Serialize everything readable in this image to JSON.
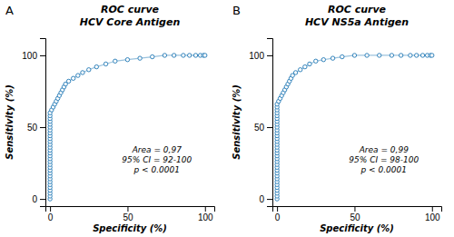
{
  "chart_data": [
    {
      "type": "line",
      "title": "ROC curve",
      "subtitle": "HCV Core Antigen",
      "xlabel": "Specificity (%)",
      "ylabel": "Sensitivity (%)",
      "annotations": [
        "A",
        "Area = 0,97\n95% CI = 92-100\np < 0.0001"
      ],
      "marker": "circle",
      "line_style": "solid",
      "x": [
        0,
        0,
        0,
        0,
        0,
        0,
        0,
        0,
        0,
        0,
        0,
        0,
        0,
        0,
        0,
        0,
        0,
        0,
        0,
        0,
        0,
        0,
        0,
        0,
        0,
        0,
        0,
        0,
        0,
        0,
        0,
        1,
        2,
        3,
        4,
        5,
        6,
        7,
        8,
        9,
        10,
        12,
        15,
        18,
        21,
        25,
        30,
        36,
        42,
        50,
        58,
        66,
        74,
        80,
        86,
        90,
        94,
        97,
        99,
        100
      ],
      "values": [
        0,
        2,
        4,
        6,
        8,
        10,
        12,
        14,
        16,
        18,
        20,
        22,
        24,
        26,
        28,
        30,
        32,
        34,
        36,
        38,
        40,
        42,
        44,
        46,
        48,
        50,
        52,
        54,
        56,
        58,
        60,
        62,
        64,
        66,
        68,
        70,
        72,
        74,
        76,
        78,
        80,
        82,
        84,
        86,
        88,
        90,
        92,
        94,
        96,
        97,
        98,
        99,
        100,
        100,
        100,
        100,
        100,
        100,
        100,
        100
      ],
      "xlim": [
        -3,
        106
      ],
      "ylim": [
        -5,
        112
      ],
      "xticks": [
        0,
        50,
        100
      ],
      "yticks": [
        0,
        50,
        100
      ],
      "grid": false
    },
    {
      "type": "line",
      "title": "ROC curve",
      "subtitle": "HCV NS5a Antigen",
      "xlabel": "Specificity (%)",
      "ylabel": "Sensitivity (%)",
      "annotations": [
        "B",
        "Area = 0,99\n95% CI = 98-100\np < 0.0001"
      ],
      "marker": "circle",
      "line_style": "solid",
      "x": [
        0,
        0,
        0,
        0,
        0,
        0,
        0,
        0,
        0,
        0,
        0,
        0,
        0,
        0,
        0,
        0,
        0,
        0,
        0,
        0,
        0,
        0,
        0,
        0,
        0,
        0,
        0,
        0,
        0,
        0,
        0,
        0,
        0,
        0,
        1,
        2,
        3,
        4,
        5,
        6,
        7,
        8,
        9,
        10,
        12,
        15,
        18,
        21,
        25,
        30,
        36,
        42,
        50,
        58,
        66,
        74,
        80,
        86,
        90,
        94,
        97,
        99,
        100
      ],
      "values": [
        0,
        2,
        4,
        6,
        8,
        10,
        12,
        14,
        16,
        18,
        20,
        22,
        24,
        26,
        28,
        30,
        32,
        34,
        36,
        38,
        40,
        42,
        44,
        46,
        48,
        50,
        52,
        54,
        56,
        58,
        60,
        62,
        64,
        66,
        68,
        70,
        72,
        74,
        76,
        78,
        80,
        82,
        84,
        86,
        88,
        90,
        92,
        94,
        96,
        97,
        98,
        99,
        100,
        100,
        100,
        100,
        100,
        100,
        100,
        100,
        100,
        100,
        100
      ],
      "xlim": [
        -3,
        106
      ],
      "ylim": [
        -5,
        112
      ],
      "xticks": [
        0,
        50,
        100
      ],
      "yticks": [
        0,
        50,
        100
      ],
      "grid": false
    }
  ]
}
